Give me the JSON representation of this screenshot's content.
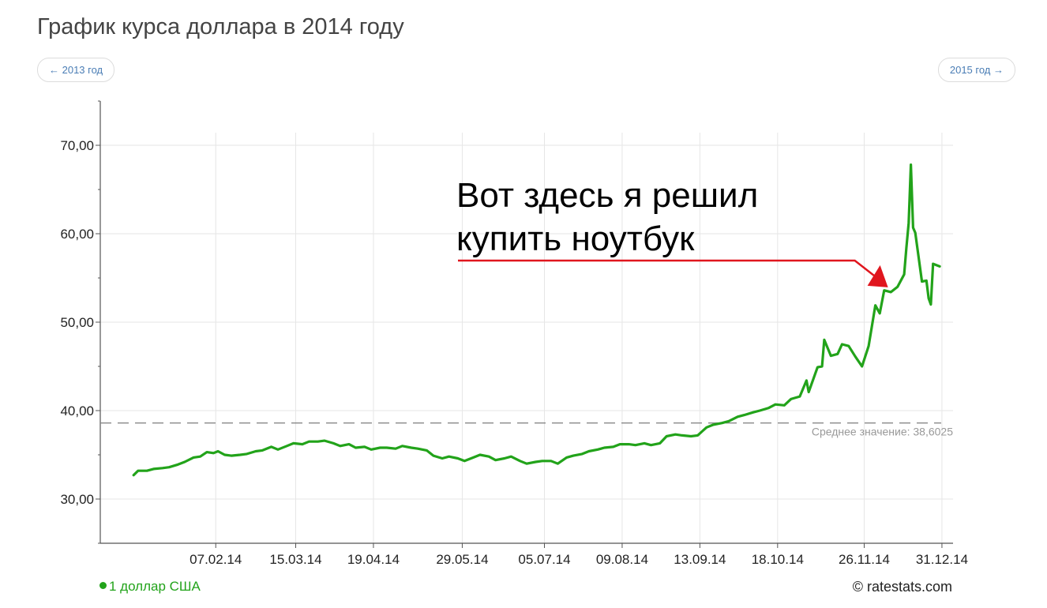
{
  "page": {
    "title": "График курса доллара в 2014 году",
    "prev_label": "← 2013 год",
    "next_label": "2015 год →",
    "credit": "© ratestats.com"
  },
  "colors": {
    "line": "#22a31a",
    "grid": "#e6e6e6",
    "axis": "#555555",
    "average_line": "#888888",
    "annotation_arrow": "#e0161e",
    "annotation_text": "#000000"
  },
  "chart_data": {
    "type": "line",
    "title": "График курса доллара в 2014 году",
    "x_type": "date",
    "xlim": [
      "2013-12-17",
      "2015-01-05"
    ],
    "ylim": [
      25,
      75
    ],
    "y_ticks": [
      30,
      40,
      50,
      60,
      70
    ],
    "y_tick_labels": [
      "30,00",
      "40,00",
      "50,00",
      "60,00",
      "70,00"
    ],
    "x_ticks": [
      "2014-02-07",
      "2014-03-15",
      "2014-04-19",
      "2014-05-29",
      "2014-07-05",
      "2014-08-09",
      "2014-09-13",
      "2014-10-18",
      "2014-11-26",
      "2014-12-31"
    ],
    "x_tick_labels": [
      "07.02.14",
      "15.03.14",
      "19.04.14",
      "29.05.14",
      "05.07.14",
      "09.08.14",
      "13.09.14",
      "18.10.14",
      "26.11.14",
      "31.12.14"
    ],
    "grid": true,
    "legend_position": "bottom-left",
    "series": [
      {
        "name": "1 доллар США",
        "points": [
          [
            "2014-01-01",
            32.7
          ],
          [
            "2014-01-03",
            33.2
          ],
          [
            "2014-01-07",
            33.2
          ],
          [
            "2014-01-10",
            33.4
          ],
          [
            "2014-01-14",
            33.5
          ],
          [
            "2014-01-17",
            33.6
          ],
          [
            "2014-01-21",
            33.9
          ],
          [
            "2014-01-24",
            34.2
          ],
          [
            "2014-01-28",
            34.7
          ],
          [
            "2014-01-31",
            34.8
          ],
          [
            "2014-02-03",
            35.3
          ],
          [
            "2014-02-06",
            35.2
          ],
          [
            "2014-02-08",
            35.4
          ],
          [
            "2014-02-11",
            35.0
          ],
          [
            "2014-02-14",
            34.9
          ],
          [
            "2014-02-18",
            35.0
          ],
          [
            "2014-02-21",
            35.1
          ],
          [
            "2014-02-25",
            35.4
          ],
          [
            "2014-02-28",
            35.5
          ],
          [
            "2014-03-04",
            35.9
          ],
          [
            "2014-03-07",
            35.6
          ],
          [
            "2014-03-11",
            36.0
          ],
          [
            "2014-03-14",
            36.3
          ],
          [
            "2014-03-18",
            36.2
          ],
          [
            "2014-03-21",
            36.5
          ],
          [
            "2014-03-25",
            36.5
          ],
          [
            "2014-03-28",
            36.6
          ],
          [
            "2014-04-01",
            36.3
          ],
          [
            "2014-04-04",
            36.0
          ],
          [
            "2014-04-08",
            36.2
          ],
          [
            "2014-04-11",
            35.8
          ],
          [
            "2014-04-15",
            35.9
          ],
          [
            "2014-04-18",
            35.6
          ],
          [
            "2014-04-22",
            35.8
          ],
          [
            "2014-04-25",
            35.8
          ],
          [
            "2014-04-29",
            35.7
          ],
          [
            "2014-05-02",
            36.0
          ],
          [
            "2014-05-06",
            35.8
          ],
          [
            "2014-05-09",
            35.7
          ],
          [
            "2014-05-13",
            35.5
          ],
          [
            "2014-05-16",
            34.9
          ],
          [
            "2014-05-20",
            34.6
          ],
          [
            "2014-05-23",
            34.8
          ],
          [
            "2014-05-27",
            34.6
          ],
          [
            "2014-05-30",
            34.3
          ],
          [
            "2014-06-03",
            34.7
          ],
          [
            "2014-06-06",
            35.0
          ],
          [
            "2014-06-10",
            34.8
          ],
          [
            "2014-06-13",
            34.4
          ],
          [
            "2014-06-17",
            34.6
          ],
          [
            "2014-06-20",
            34.8
          ],
          [
            "2014-06-24",
            34.3
          ],
          [
            "2014-06-27",
            34.0
          ],
          [
            "2014-07-01",
            34.2
          ],
          [
            "2014-07-04",
            34.3
          ],
          [
            "2014-07-08",
            34.3
          ],
          [
            "2014-07-11",
            34.0
          ],
          [
            "2014-07-15",
            34.7
          ],
          [
            "2014-07-18",
            34.9
          ],
          [
            "2014-07-22",
            35.1
          ],
          [
            "2014-07-25",
            35.4
          ],
          [
            "2014-07-29",
            35.6
          ],
          [
            "2014-08-01",
            35.8
          ],
          [
            "2014-08-05",
            35.9
          ],
          [
            "2014-08-08",
            36.2
          ],
          [
            "2014-08-12",
            36.2
          ],
          [
            "2014-08-15",
            36.1
          ],
          [
            "2014-08-19",
            36.3
          ],
          [
            "2014-08-22",
            36.1
          ],
          [
            "2014-08-26",
            36.3
          ],
          [
            "2014-08-29",
            37.1
          ],
          [
            "2014-09-02",
            37.3
          ],
          [
            "2014-09-05",
            37.2
          ],
          [
            "2014-09-09",
            37.1
          ],
          [
            "2014-09-12",
            37.2
          ],
          [
            "2014-09-16",
            38.1
          ],
          [
            "2014-09-19",
            38.4
          ],
          [
            "2014-09-23",
            38.6
          ],
          [
            "2014-09-26",
            38.8
          ],
          [
            "2014-09-30",
            39.3
          ],
          [
            "2014-10-03",
            39.5
          ],
          [
            "2014-10-07",
            39.8
          ],
          [
            "2014-10-10",
            40.0
          ],
          [
            "2014-10-14",
            40.3
          ],
          [
            "2014-10-17",
            40.7
          ],
          [
            "2014-10-21",
            40.6
          ],
          [
            "2014-10-24",
            41.3
          ],
          [
            "2014-10-28",
            41.6
          ],
          [
            "2014-10-31",
            43.4
          ],
          [
            "2014-11-01",
            42.1
          ],
          [
            "2014-11-05",
            44.9
          ],
          [
            "2014-11-07",
            45.0
          ],
          [
            "2014-11-08",
            48.0
          ],
          [
            "2014-11-11",
            46.2
          ],
          [
            "2014-11-14",
            46.4
          ],
          [
            "2014-11-16",
            47.5
          ],
          [
            "2014-11-19",
            47.3
          ],
          [
            "2014-11-22",
            46.1
          ],
          [
            "2014-11-25",
            45.0
          ],
          [
            "2014-11-28",
            47.3
          ],
          [
            "2014-12-01",
            51.9
          ],
          [
            "2014-12-03",
            51.0
          ],
          [
            "2014-12-05",
            53.6
          ],
          [
            "2014-12-08",
            53.4
          ],
          [
            "2014-12-11",
            54.0
          ],
          [
            "2014-12-14",
            55.4
          ],
          [
            "2014-12-15",
            58.4
          ],
          [
            "2014-12-16",
            61.2
          ],
          [
            "2014-12-17",
            67.8
          ],
          [
            "2014-12-18",
            60.7
          ],
          [
            "2014-12-19",
            60.1
          ],
          [
            "2014-12-22",
            54.6
          ],
          [
            "2014-12-24",
            54.7
          ],
          [
            "2014-12-25",
            52.7
          ],
          [
            "2014-12-26",
            52.0
          ],
          [
            "2014-12-27",
            56.6
          ],
          [
            "2014-12-30",
            56.3
          ]
        ]
      }
    ],
    "average": {
      "value": 38.6025,
      "label": "Среднее значение: 38,6025"
    },
    "annotation": {
      "text_lines": [
        "Вот здесь я решил",
        "купить ноутбук"
      ],
      "date": "2014-12-06",
      "value": 54.3
    }
  },
  "legend": {
    "label": "1 доллар США"
  }
}
